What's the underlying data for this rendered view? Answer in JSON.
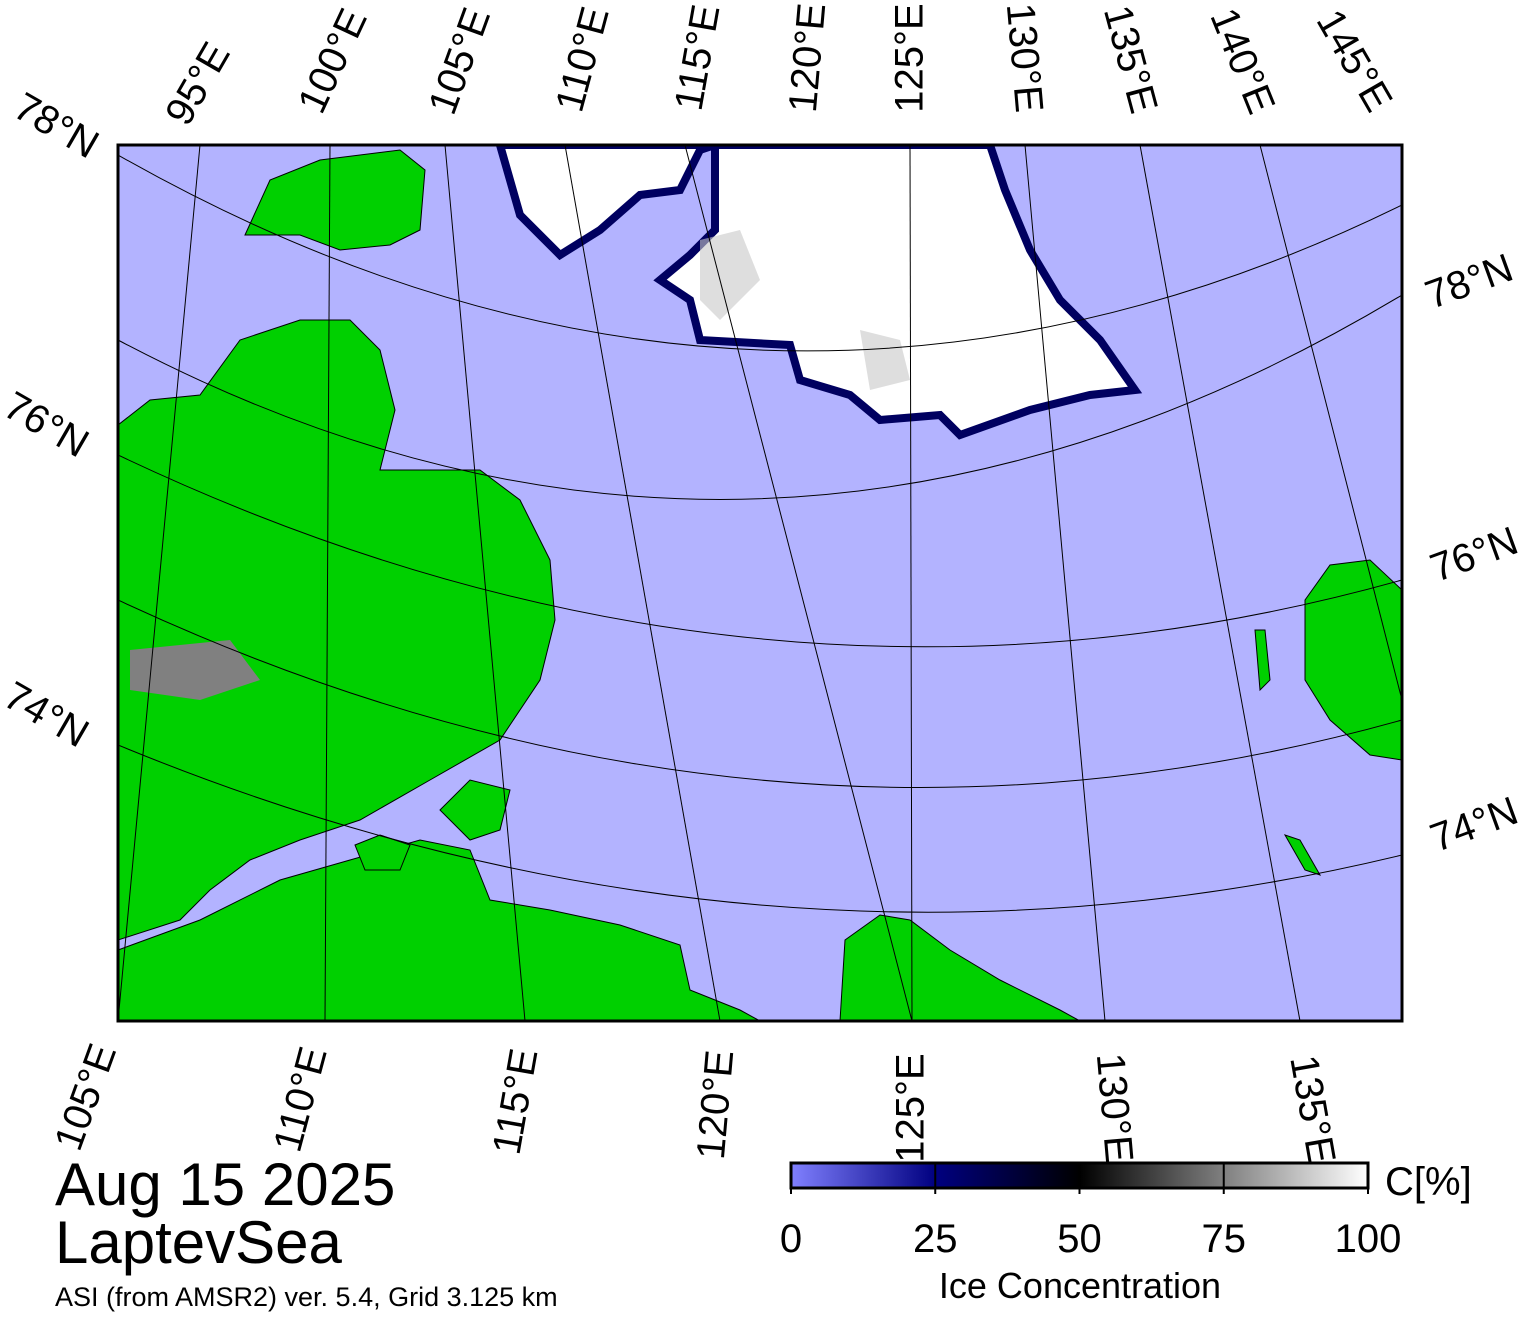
{
  "map": {
    "top_labels": [
      "78°N",
      "95°E",
      "100°E",
      "105°E",
      "110°E",
      "115°E",
      "120°E",
      "125°E",
      "130°E",
      "135°E",
      "140°E",
      "145°E"
    ],
    "left_labels": [
      "76°N",
      "74°N"
    ],
    "right_labels": [
      "78°N",
      "76°N",
      "74°N"
    ],
    "bottom_labels": [
      "105°E",
      "110°E",
      "115°E",
      "120°E",
      "125°E",
      "130°E",
      "135°E"
    ]
  },
  "date": "Aug 15 2025",
  "region": "LaptevSea",
  "source": "ASI (from AMSR2) ver. 5.4,  Grid 3.125 km",
  "colorbar": {
    "label": "Ice Concentration",
    "unit": "C[%]",
    "lim": [
      0,
      100
    ],
    "ticks": [
      0,
      25,
      50,
      75,
      100
    ]
  }
}
